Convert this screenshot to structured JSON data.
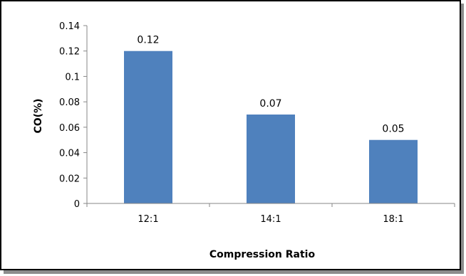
{
  "chart_data": {
    "type": "bar",
    "title": "",
    "categories": [
      "12:1",
      "14:1",
      "18:1"
    ],
    "values": [
      0.12,
      0.07,
      0.05
    ],
    "data_labels": [
      "0.12",
      "0.07",
      "0.05"
    ],
    "xlabel": "Compression Ratio",
    "ylabel": "CO(%)",
    "ylim": [
      0,
      0.14
    ],
    "yticks": [
      0,
      0.02,
      0.04,
      0.06,
      0.08,
      0.1,
      0.12,
      0.14
    ],
    "ytick_labels": [
      "0",
      "0.02",
      "0.04",
      "0.06",
      "0.08",
      "0.1",
      "0.12",
      "0.14"
    ],
    "grid": false,
    "legend": "none",
    "colors": {
      "bar": "#4F81BD",
      "axis": "#878787",
      "frame": "#000000",
      "shadow": "#8C8C8C",
      "text": "#000000"
    }
  }
}
